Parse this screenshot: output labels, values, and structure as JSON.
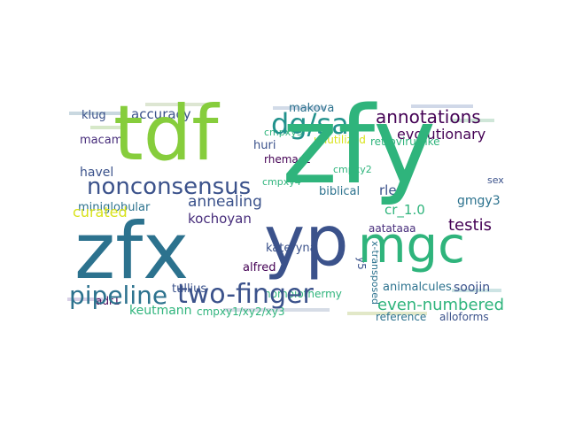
{
  "cloud": {
    "colors": {
      "lime": "#86cd3c",
      "green": "#2fb47c",
      "teal": "#21918c",
      "blue": "#2c728e",
      "indigo": "#3b528b",
      "purple": "#472d7b",
      "dark": "#440154",
      "yellow": "#d8e219"
    },
    "words": {
      "zfy": "zfy",
      "tdf": "tdf",
      "zfx": "zfx",
      "yp": "yp",
      "mgc": "mgc",
      "dgsa": "dg/sa",
      "nonconsensus": "nonconsensus",
      "pipeline": "pipeline",
      "twofinger": "two-finger",
      "annotations": "annotations",
      "evolutionary": "evolutionary",
      "testis": "testis",
      "annealing": "annealing",
      "curated": "curated",
      "accuracy": "accuracy",
      "klug": "klug",
      "macam": "macam",
      "havel": "havel",
      "miniglobular": "miniglobular",
      "kochoyan": "kochoyan",
      "keutmann": "keutmann",
      "cmpxy": "cmpxy1/xy2/xy3",
      "evennumbered": "even-numbered",
      "gmgy3": "gmgy3",
      "retroviruslike": "retroviruslike",
      "cr10": "cr_1.0",
      "makova": "makova",
      "unutilized": "unutilized",
      "cmpxy3": "cmpxy3",
      "cmpxy2": "cmpxy2",
      "cmpxy4": "cmpxy4",
      "huri": "huri",
      "rhemac2": "rhemac2",
      "biblical": "biblical",
      "rles": "rles",
      "aatataaa": "aatataaa",
      "kateryna": "kateryna",
      "alfred": "alfred",
      "tullius": "tullius",
      "adr1": "adr1",
      "homoiothermy": "homoiothermy",
      "animalcules": "animalcules",
      "soojin": "soojin",
      "reference": "reference",
      "alloforms": "alloforms",
      "y5": "y5",
      "xtransposed": "x-transposed",
      "sex": "sex"
    }
  }
}
